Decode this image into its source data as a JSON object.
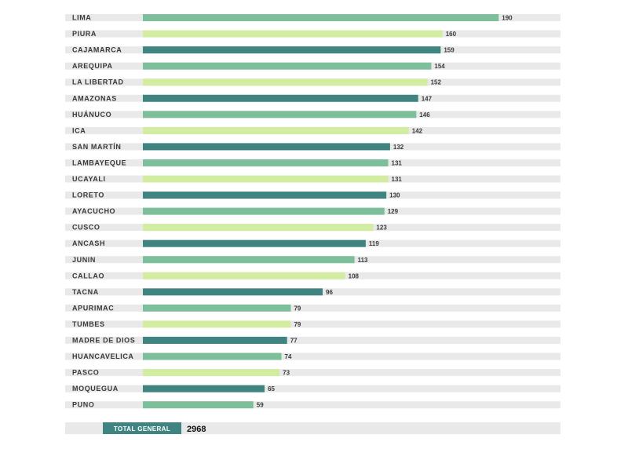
{
  "chart_data": {
    "type": "bar",
    "orientation": "horizontal",
    "categories": [
      "LIMA",
      "PIURA",
      "CAJAMARCA",
      "AREQUIPA",
      "LA LIBERTAD",
      "AMAZONAS",
      "HUÁNUCO",
      "ICA",
      "SAN MARTÍN",
      "LAMBAYEQUE",
      "UCAYALI",
      "LORETO",
      "AYACUCHO",
      "CUSCO",
      "ANCASH",
      "JUNIN",
      "CALLAO",
      "TACNA",
      "APURIMAC",
      "TUMBES",
      "MADRE DE DIOS",
      "HUANCAVELICA",
      "PASCO",
      "MOQUEGUA",
      "PUNO"
    ],
    "values": [
      190,
      160,
      159,
      154,
      152,
      147,
      146,
      142,
      132,
      131,
      131,
      130,
      129,
      123,
      119,
      113,
      108,
      96,
      79,
      79,
      77,
      74,
      73,
      65,
      59
    ],
    "value_labels": [
      "190",
      "160",
      "159",
      "154",
      "152",
      "147",
      "146",
      "142",
      "132",
      "131",
      "131",
      "130",
      "129",
      "123",
      "119",
      "113",
      "108",
      "96",
      "79",
      "79",
      "77",
      "74",
      "73",
      "65",
      "59"
    ],
    "color_pattern": [
      "#7dbf9a",
      "#d2eca2",
      "#3f8480"
    ],
    "track_color": "#e9e9e9",
    "xlim": [
      0,
      223
    ],
    "grid": false,
    "legend": "none"
  },
  "total": {
    "label": "TOTAL GENERAL",
    "value": "2968",
    "label_color": "#3f8480"
  }
}
